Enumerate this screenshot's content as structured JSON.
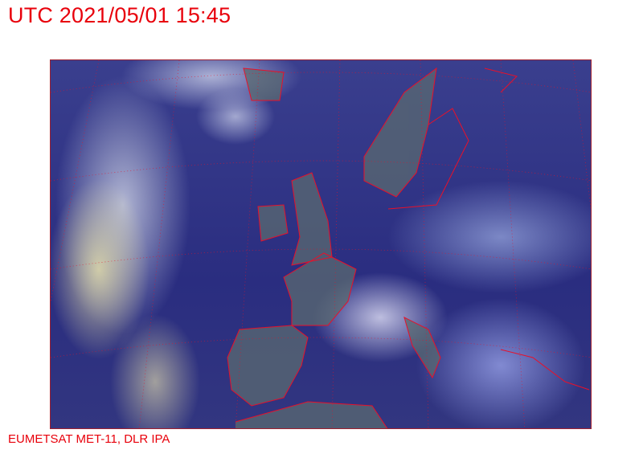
{
  "header": {
    "title": "UTC 2021/05/01 15:45"
  },
  "map": {
    "type": "satellite-image",
    "region": "Europe / North Atlantic",
    "overlays": [
      "coastlines",
      "country-borders",
      "lat-lon-grid"
    ],
    "colors": {
      "overlay_lines": "#e8102a",
      "text": "#e8000b"
    }
  },
  "footer": {
    "credit": "EUMETSAT MET-11, DLR IPA"
  }
}
